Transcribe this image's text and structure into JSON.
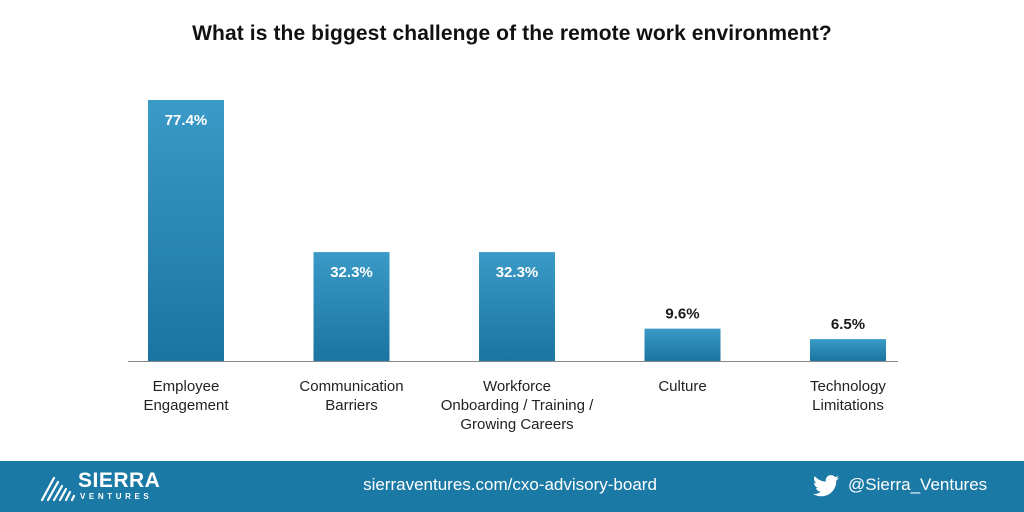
{
  "footer": {
    "logo_name": "SIERRA",
    "logo_sub": "VENTURES",
    "url": "sierraventures.com/cxo-advisory-board",
    "handle": "@Sierra_Ventures",
    "icons": [
      "sierra-ventures-logo-icon",
      "twitter-bird-icon"
    ]
  },
  "colors": {
    "bar_top": "#3b9ac7",
    "bar_bottom": "#1b74a1",
    "footer_bg": "#1b7aa5",
    "axis": "#888888"
  },
  "chart_data": {
    "type": "bar",
    "title": "What is the biggest challenge of the remote work environment?",
    "categories": [
      [
        "Employee",
        "Engagement"
      ],
      [
        "Communication",
        "Barriers"
      ],
      [
        "Workforce",
        "Onboarding / Training /",
        "Growing Careers"
      ],
      [
        "Culture"
      ],
      [
        "Technology",
        "Limitations"
      ]
    ],
    "values": [
      77.4,
      32.3,
      32.3,
      9.6,
      6.5
    ],
    "value_labels": [
      "77.4%",
      "32.3%",
      "32.3%",
      "9.6%",
      "6.5%"
    ],
    "ylim": [
      0,
      100
    ],
    "grid": false,
    "legend": "none"
  }
}
